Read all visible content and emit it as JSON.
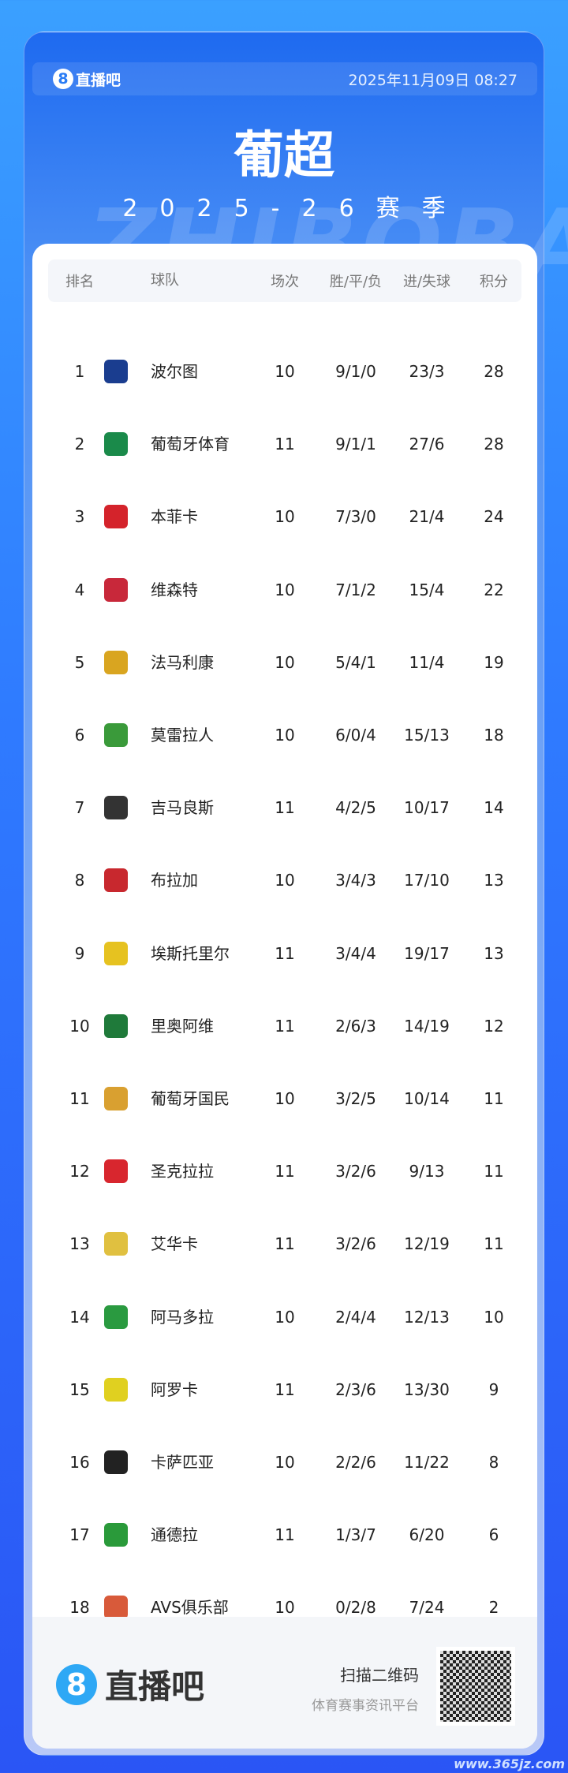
{
  "header": {
    "brand": "直播吧",
    "datetime": "2025年11月09日 08:27",
    "title": "葡超",
    "season": "2025-26赛季",
    "watermark": "ZHIBOBA"
  },
  "table": {
    "columns": [
      "排名",
      "球队",
      "场次",
      "胜/平/负",
      "进/失球",
      "积分"
    ],
    "rows": [
      {
        "rank": "1",
        "team": "波尔图",
        "played": "10",
        "wdl": "9/1/0",
        "goals": "23/3",
        "points": "28",
        "color": "#1a3d8f"
      },
      {
        "rank": "2",
        "team": "葡萄牙体育",
        "played": "11",
        "wdl": "9/1/1",
        "goals": "27/6",
        "points": "28",
        "color": "#1a8a4a"
      },
      {
        "rank": "3",
        "team": "本菲卡",
        "played": "10",
        "wdl": "7/3/0",
        "goals": "21/4",
        "points": "24",
        "color": "#d4232b"
      },
      {
        "rank": "4",
        "team": "维森特",
        "played": "10",
        "wdl": "7/1/2",
        "goals": "15/4",
        "points": "22",
        "color": "#c8283a"
      },
      {
        "rank": "5",
        "team": "法马利康",
        "played": "10",
        "wdl": "5/4/1",
        "goals": "11/4",
        "points": "19",
        "color": "#d9a520"
      },
      {
        "rank": "6",
        "team": "莫雷拉人",
        "played": "10",
        "wdl": "6/0/4",
        "goals": "15/13",
        "points": "18",
        "color": "#3a9a3a"
      },
      {
        "rank": "7",
        "team": "吉马良斯",
        "played": "11",
        "wdl": "4/2/5",
        "goals": "10/17",
        "points": "14",
        "color": "#333333"
      },
      {
        "rank": "8",
        "team": "布拉加",
        "played": "10",
        "wdl": "3/4/3",
        "goals": "17/10",
        "points": "13",
        "color": "#c8282e"
      },
      {
        "rank": "9",
        "team": "埃斯托里尔",
        "played": "11",
        "wdl": "3/4/4",
        "goals": "19/17",
        "points": "13",
        "color": "#e6c220"
      },
      {
        "rank": "10",
        "team": "里奥阿维",
        "played": "11",
        "wdl": "2/6/3",
        "goals": "14/19",
        "points": "12",
        "color": "#1f7a3a"
      },
      {
        "rank": "11",
        "team": "葡萄牙国民",
        "played": "10",
        "wdl": "3/2/5",
        "goals": "10/14",
        "points": "11",
        "color": "#d9a030"
      },
      {
        "rank": "12",
        "team": "圣克拉拉",
        "played": "11",
        "wdl": "3/2/6",
        "goals": "9/13",
        "points": "11",
        "color": "#d8262e"
      },
      {
        "rank": "13",
        "team": "艾华卡",
        "played": "11",
        "wdl": "3/2/6",
        "goals": "12/19",
        "points": "11",
        "color": "#e0c040"
      },
      {
        "rank": "14",
        "team": "阿马多拉",
        "played": "10",
        "wdl": "2/4/4",
        "goals": "12/13",
        "points": "10",
        "color": "#2a9a40"
      },
      {
        "rank": "15",
        "team": "阿罗卡",
        "played": "11",
        "wdl": "2/3/6",
        "goals": "13/30",
        "points": "9",
        "color": "#e0d020"
      },
      {
        "rank": "16",
        "team": "卡萨匹亚",
        "played": "10",
        "wdl": "2/2/6",
        "goals": "11/22",
        "points": "8",
        "color": "#222222"
      },
      {
        "rank": "17",
        "team": "通德拉",
        "played": "11",
        "wdl": "1/3/7",
        "goals": "6/20",
        "points": "6",
        "color": "#2a9a3a"
      },
      {
        "rank": "18",
        "team": "AVS俱乐部",
        "played": "10",
        "wdl": "0/2/8",
        "goals": "7/24",
        "points": "2",
        "color": "#d85a3a"
      }
    ]
  },
  "footer": {
    "brand": "直播吧",
    "scan": "扫描二维码",
    "platform": "体育赛事资讯平台",
    "site": "www.365jz.com"
  }
}
